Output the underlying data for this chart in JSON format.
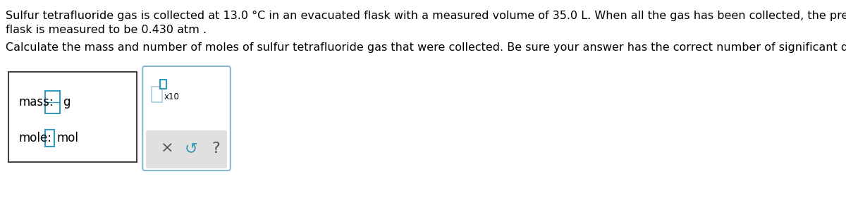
{
  "line1": "Sulfur tetrafluoride gas is collected at 13.0 °C in an evacuated flask with a measured volume of 35.0 L. When all the gas has been collected, the pressure in the",
  "line2": "flask is measured to be 0.430 atm .",
  "line3": "Calculate the mass and number of moles of sulfur tetrafluoride gas that were collected. Be sure your answer has the correct number of significant digits.",
  "label_mass": "mass:",
  "label_mole": "mole:",
  "unit_g": "g",
  "unit_mol": "mol",
  "x10_label": "x10",
  "cross_symbol": "×",
  "undo_symbol": "↺",
  "question_symbol": "?",
  "bg_color": "#ffffff",
  "box1_border": "#444444",
  "box2_border": "#88bbcc",
  "input_border_dark": "#3399bb",
  "input_border_light": "#aaccdd",
  "button_bg": "#e0e0e0",
  "text_color": "#000000",
  "symbol_color": "#555555",
  "undo_color": "#3399bb",
  "font_size_main": 11.5,
  "font_size_label": 12,
  "font_size_symbol": 16
}
